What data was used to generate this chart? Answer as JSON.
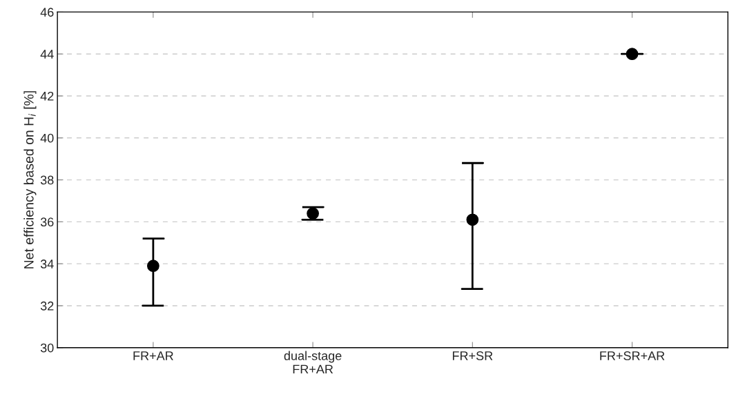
{
  "chart_data": {
    "type": "scatter",
    "categories": [
      "FR+AR",
      "dual-stage\nFR+AR",
      "FR+SR",
      "FR+SR+AR"
    ],
    "series": [
      {
        "color": "#000000",
        "values": [
          33.9,
          36.4,
          36.1,
          44.0
        ],
        "errors": [
          [
            32.0,
            35.2
          ],
          [
            36.1,
            36.7
          ],
          [
            32.8,
            38.8
          ],
          [
            44.0,
            44.0
          ]
        ]
      }
    ],
    "ylabel": "Net efficiency based on H$_{i}$ [%]",
    "ylim": [
      30,
      46
    ],
    "yticks": [
      30,
      32,
      34,
      36,
      38,
      40,
      42,
      44,
      46
    ],
    "grid": "y",
    "marker": "circle",
    "legend": false
  }
}
